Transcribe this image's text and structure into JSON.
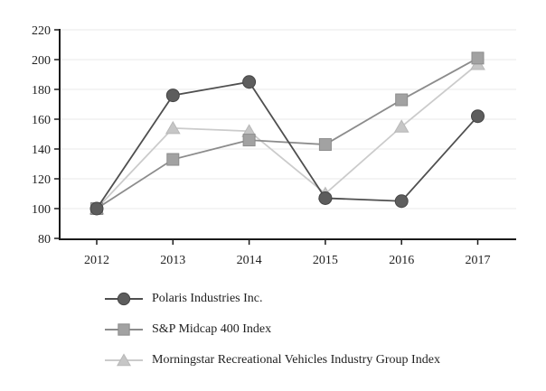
{
  "page": {
    "background": "#ffffff"
  },
  "chart_data": {
    "type": "line",
    "title": "",
    "xlabel": "",
    "ylabel": "",
    "x_categories": [
      "2012",
      "2013",
      "2014",
      "2015",
      "2016",
      "2017"
    ],
    "y_ticks": [
      80,
      100,
      120,
      140,
      160,
      180,
      200,
      220
    ],
    "ylim": [
      80,
      220
    ],
    "grid": "horizontal-light",
    "legend_position": "bottom-left",
    "axis_color": "#1a1a1a",
    "grid_color": "#e9e9e9",
    "text_color": "#1f1f1f",
    "series": [
      {
        "name": "Polaris Industries Inc.",
        "marker": "circle",
        "values": [
          100,
          176,
          185,
          107,
          105,
          162
        ],
        "line_color": "#4f4f4f",
        "marker_color": "#5d5d5d",
        "marker_stroke": "#454545"
      },
      {
        "name": "S&P Midcap 400 Index",
        "marker": "square",
        "values": [
          100,
          133,
          146,
          143,
          173,
          201
        ],
        "line_color": "#8c8c8c",
        "marker_color": "#a2a2a2",
        "marker_stroke": "#8c8c8c"
      },
      {
        "name": "Morningstar Recreational Vehicles Industry Group Index",
        "marker": "triangle",
        "values": [
          100,
          154,
          152,
          110,
          155,
          197
        ],
        "line_color": "#cbcbcb",
        "marker_color": "#c6c6c6",
        "marker_stroke": "#b8b8b8"
      }
    ]
  }
}
